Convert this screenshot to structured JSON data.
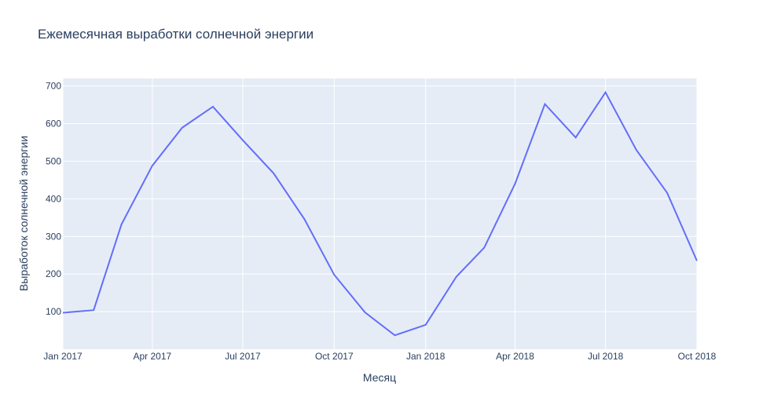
{
  "chart_data": {
    "type": "line",
    "title": "Ежемесячная выработки солнечной энергии",
    "xlabel": "Месяц",
    "ylabel": "Выработок солнечной энергии",
    "x": [
      "2017-01",
      "2017-02",
      "2017-03",
      "2017-04",
      "2017-05",
      "2017-06",
      "2017-07",
      "2017-08",
      "2017-09",
      "2017-10",
      "2017-11",
      "2017-12",
      "2018-01",
      "2018-02",
      "2018-03",
      "2018-04",
      "2018-05",
      "2018-06",
      "2018-07",
      "2018-08",
      "2018-09",
      "2018-10"
    ],
    "series": [
      {
        "values": [
          97,
          104,
          332,
          488,
          589,
          645,
          556,
          468,
          346,
          198,
          98,
          37,
          65,
          193,
          270,
          440,
          652,
          563,
          683,
          530,
          416,
          235
        ]
      }
    ],
    "x_ticks": [
      "Jan 2017",
      "Apr 2017",
      "Jul 2017",
      "Oct 2017",
      "Jan 2018",
      "Apr 2018",
      "Jul 2018",
      "Oct 2018"
    ],
    "y_ticks": [
      100,
      200,
      300,
      400,
      500,
      600,
      700
    ],
    "ylim": [
      0,
      720
    ],
    "grid": true,
    "colors": {
      "line": "#636efa",
      "plot_bg": "#e5ecf6",
      "grid": "#ffffff"
    }
  }
}
